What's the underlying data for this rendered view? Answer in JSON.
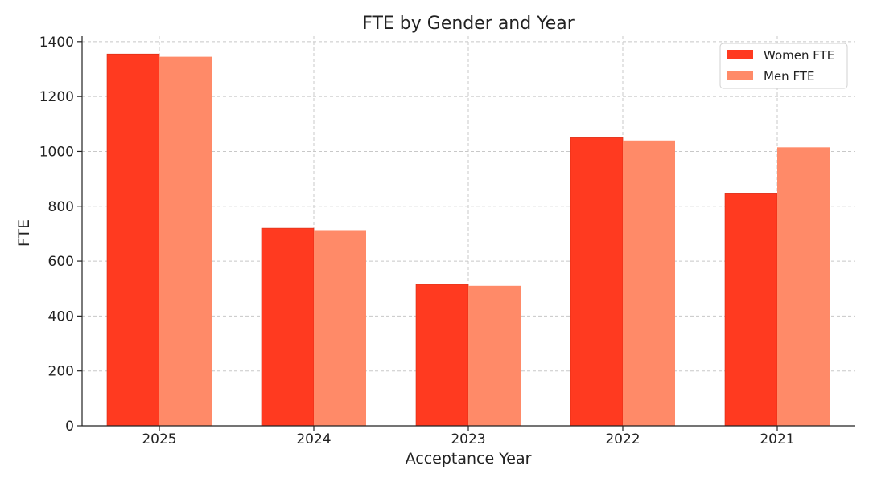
{
  "chart_data": {
    "type": "bar",
    "title": "FTE by Gender and Year",
    "xlabel": "Acceptance Year",
    "ylabel": "FTE",
    "categories": [
      "2025",
      "2024",
      "2023",
      "2022",
      "2021"
    ],
    "series": [
      {
        "name": "Women FTE",
        "color": "#ff3a20",
        "values": [
          1355,
          720,
          515,
          1050,
          848
        ]
      },
      {
        "name": "Men FTE",
        "color": "#ff8a68",
        "values": [
          1345,
          713,
          510,
          1040,
          1015
        ]
      }
    ],
    "ylim": [
      0,
      1420
    ],
    "yticks": [
      0,
      200,
      400,
      600,
      800,
      1000,
      1200,
      1400
    ],
    "grid": true,
    "legend_position": "top-right"
  }
}
